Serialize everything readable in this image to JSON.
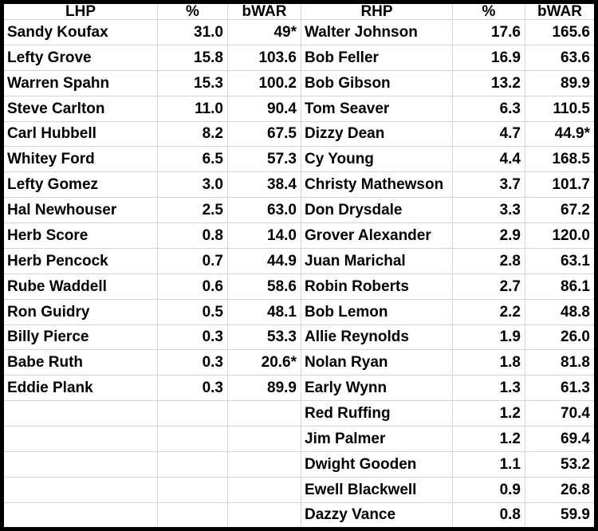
{
  "colors": {
    "frame_border": "#000000",
    "gridline": "#d4d4d4",
    "text": "#000000",
    "background": "#ffffff"
  },
  "table": {
    "headers": {
      "lhp": "LHP",
      "lhp_pct": "%",
      "lhp_bwar": "bWAR",
      "rhp": "RHP",
      "rhp_pct": "%",
      "rhp_bwar": "bWAR"
    },
    "rows": [
      {
        "lhp_name": "Sandy Koufax",
        "lhp_pct": "31.0",
        "lhp_bwar": "49*",
        "rhp_name": "Walter Johnson",
        "rhp_pct": "17.6",
        "rhp_bwar": "165.6"
      },
      {
        "lhp_name": "Lefty Grove",
        "lhp_pct": "15.8",
        "lhp_bwar": "103.6",
        "rhp_name": "Bob Feller",
        "rhp_pct": "16.9",
        "rhp_bwar": "63.6"
      },
      {
        "lhp_name": "Warren Spahn",
        "lhp_pct": "15.3",
        "lhp_bwar": "100.2",
        "rhp_name": "Bob Gibson",
        "rhp_pct": "13.2",
        "rhp_bwar": "89.9"
      },
      {
        "lhp_name": "Steve Carlton",
        "lhp_pct": "11.0",
        "lhp_bwar": "90.4",
        "rhp_name": "Tom Seaver",
        "rhp_pct": "6.3",
        "rhp_bwar": "110.5"
      },
      {
        "lhp_name": "Carl Hubbell",
        "lhp_pct": "8.2",
        "lhp_bwar": "67.5",
        "rhp_name": "Dizzy Dean",
        "rhp_pct": "4.7",
        "rhp_bwar": "44.9*"
      },
      {
        "lhp_name": "Whitey Ford",
        "lhp_pct": "6.5",
        "lhp_bwar": "57.3",
        "rhp_name": "Cy Young",
        "rhp_pct": "4.4",
        "rhp_bwar": "168.5"
      },
      {
        "lhp_name": "Lefty Gomez",
        "lhp_pct": "3.0",
        "lhp_bwar": "38.4",
        "rhp_name": "Christy Mathewson",
        "rhp_pct": "3.7",
        "rhp_bwar": "101.7"
      },
      {
        "lhp_name": "Hal Newhouser",
        "lhp_pct": "2.5",
        "lhp_bwar": "63.0",
        "rhp_name": "Don Drysdale",
        "rhp_pct": "3.3",
        "rhp_bwar": "67.2"
      },
      {
        "lhp_name": "Herb Score",
        "lhp_pct": "0.8",
        "lhp_bwar": "14.0",
        "rhp_name": "Grover Alexander",
        "rhp_pct": "2.9",
        "rhp_bwar": "120.0"
      },
      {
        "lhp_name": "Herb Pencock",
        "lhp_pct": "0.7",
        "lhp_bwar": "44.9",
        "rhp_name": "Juan Marichal",
        "rhp_pct": "2.8",
        "rhp_bwar": "63.1"
      },
      {
        "lhp_name": "Rube Waddell",
        "lhp_pct": "0.6",
        "lhp_bwar": "58.6",
        "rhp_name": "Robin Roberts",
        "rhp_pct": "2.7",
        "rhp_bwar": "86.1"
      },
      {
        "lhp_name": "Ron Guidry",
        "lhp_pct": "0.5",
        "lhp_bwar": "48.1",
        "rhp_name": "Bob Lemon",
        "rhp_pct": "2.2",
        "rhp_bwar": "48.8"
      },
      {
        "lhp_name": "Billy Pierce",
        "lhp_pct": "0.3",
        "lhp_bwar": "53.3",
        "rhp_name": "Allie Reynolds",
        "rhp_pct": "1.9",
        "rhp_bwar": "26.0"
      },
      {
        "lhp_name": "Babe Ruth",
        "lhp_pct": "0.3",
        "lhp_bwar": "20.6*",
        "rhp_name": "Nolan Ryan",
        "rhp_pct": "1.8",
        "rhp_bwar": "81.8"
      },
      {
        "lhp_name": "Eddie Plank",
        "lhp_pct": "0.3",
        "lhp_bwar": "89.9",
        "rhp_name": "Early Wynn",
        "rhp_pct": "1.3",
        "rhp_bwar": "61.3"
      },
      {
        "lhp_name": "",
        "lhp_pct": "",
        "lhp_bwar": "",
        "rhp_name": "Red Ruffing",
        "rhp_pct": "1.2",
        "rhp_bwar": "70.4"
      },
      {
        "lhp_name": "",
        "lhp_pct": "",
        "lhp_bwar": "",
        "rhp_name": "Jim Palmer",
        "rhp_pct": "1.2",
        "rhp_bwar": "69.4"
      },
      {
        "lhp_name": "",
        "lhp_pct": "",
        "lhp_bwar": "",
        "rhp_name": "Dwight Gooden",
        "rhp_pct": "1.1",
        "rhp_bwar": "53.2"
      },
      {
        "lhp_name": "",
        "lhp_pct": "",
        "lhp_bwar": "",
        "rhp_name": "Ewell Blackwell",
        "rhp_pct": "0.9",
        "rhp_bwar": "26.8"
      },
      {
        "lhp_name": "",
        "lhp_pct": "",
        "lhp_bwar": "",
        "rhp_name": "Dazzy Vance",
        "rhp_pct": "0.8",
        "rhp_bwar": "59.9"
      }
    ]
  }
}
